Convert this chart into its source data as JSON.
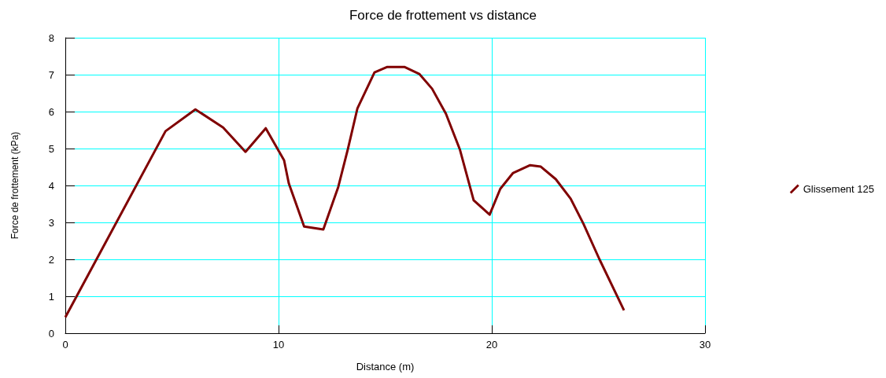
{
  "chart_data": {
    "type": "line",
    "title": "Force de frottement vs distance",
    "xlabel": "Distance (m)",
    "ylabel": "Force de frottement (kPa)",
    "xlim": [
      0,
      30
    ],
    "xticks": [
      0,
      10,
      20,
      30
    ],
    "ylim": [
      0,
      8
    ],
    "yticks": [
      0,
      1,
      2,
      3,
      4,
      5,
      6,
      7,
      8
    ],
    "grid": true,
    "legend": "right",
    "marker": "none",
    "line_style": "solid",
    "series": [
      {
        "name": "Glissement 125",
        "color": "#800000",
        "x": [
          0,
          4.7,
          6.1,
          7.4,
          8.45,
          9.4,
          10.26,
          10.48,
          11.2,
          12.1,
          12.8,
          13.25,
          13.7,
          14.5,
          15.1,
          15.9,
          16.6,
          17.2,
          17.85,
          18.5,
          19.15,
          19.9,
          20.4,
          21.0,
          21.8,
          22.3,
          23.0,
          23.7,
          24.3,
          25.05,
          26.2
        ],
        "values": [
          0.43,
          5.47,
          6.06,
          5.57,
          4.91,
          5.55,
          4.68,
          4.06,
          2.89,
          2.81,
          3.96,
          4.98,
          6.09,
          7.06,
          7.21,
          7.21,
          7.02,
          6.62,
          5.94,
          4.98,
          3.6,
          3.21,
          3.91,
          4.34,
          4.55,
          4.51,
          4.17,
          3.64,
          2.96,
          2.0,
          0.62
        ]
      }
    ]
  }
}
